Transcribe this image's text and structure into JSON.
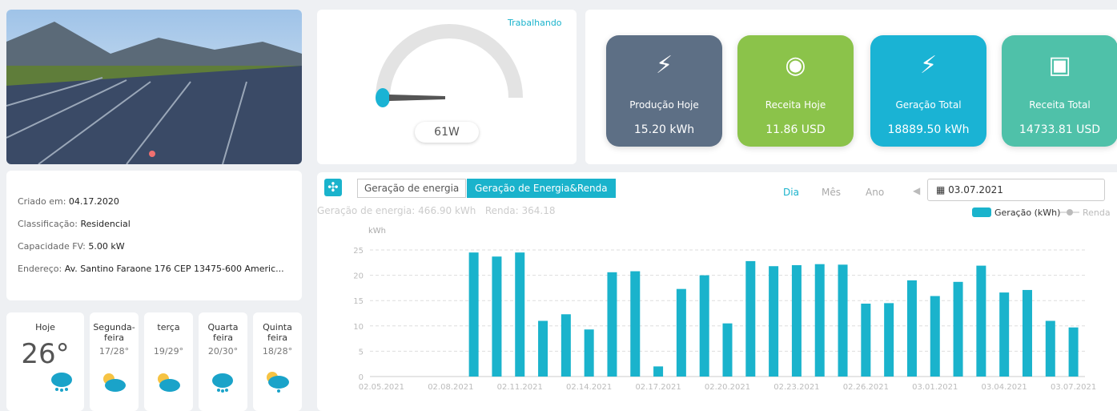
{
  "status": "Trabalhando",
  "gauge": {
    "value": "61W"
  },
  "kpis": [
    {
      "label": "Produção Hoje",
      "value": "15.20 kWh"
    },
    {
      "label": "Receita Hoje",
      "value": "11.86 USD"
    },
    {
      "label": "Geração Total",
      "value": "18889.50 kWh"
    },
    {
      "label": "Receita Total",
      "value": "14733.81 USD"
    }
  ],
  "info": [
    {
      "label": "Criado em:",
      "value": "04.17.2020"
    },
    {
      "label": "Classificação:",
      "value": "Residencial"
    },
    {
      "label": "Capacidade FV:",
      "value": "5.00 kW"
    },
    {
      "label": "Endereço:",
      "value": "Av. Santino Faraone 176 CEP 13475-600 Americ..."
    }
  ],
  "weather": [
    {
      "day": "Hoje",
      "temp": "26°"
    },
    {
      "day": "Segunda-feira",
      "temp": "17/28°"
    },
    {
      "day": "terça",
      "temp": "19/29°"
    },
    {
      "day": "Quarta feira",
      "temp": "20/30°"
    },
    {
      "day": "Quinta feira",
      "temp": "18/28°"
    }
  ],
  "chart_panel": {
    "tabs": [
      "Geração de energia",
      "Geração de Energia&Renda"
    ],
    "periods": [
      "Dia",
      "Mês",
      "Ano"
    ],
    "date": "03.07.2021",
    "summary": [
      {
        "label": "Geração de energia:",
        "value": "466.90 kWh"
      },
      {
        "label": "Renda:",
        "value": "364.18"
      }
    ]
  },
  "chart_data": {
    "type": "bar",
    "y_label": "kWh",
    "categories": [
      "02.05.2021",
      null,
      null,
      "02.08.2021",
      null,
      null,
      "02.11.2021",
      null,
      null,
      "02.14.2021",
      null,
      null,
      "02.17.2021",
      null,
      null,
      "02.20.2021",
      null,
      null,
      "02.23.2021",
      null,
      null,
      "02.26.2021",
      null,
      null,
      "03.01.2021",
      null,
      null,
      "03.04.2021",
      null,
      null,
      "03.07.2021"
    ],
    "series": [
      {
        "name": "Geração (kWh)",
        "color": "#1ab3cc",
        "values": [
          null,
          null,
          null,
          null,
          24.5,
          23.7,
          24.5,
          11,
          12.3,
          9.3,
          20.6,
          20.8,
          2,
          17.3,
          20,
          10.5,
          22.8,
          21.8,
          22,
          22.2,
          22.1,
          14.4,
          14.5,
          19,
          15.9,
          18.7,
          21.9,
          16.6,
          17.1,
          11,
          9.7
        ]
      },
      {
        "name": "Renda",
        "color": "#bbbbbb",
        "values": [
          null,
          null,
          null,
          null,
          null,
          null,
          null,
          null,
          null,
          null,
          null,
          null,
          null,
          null,
          null,
          null,
          null,
          null,
          null,
          null,
          null,
          null,
          null,
          null,
          null,
          null,
          null,
          null,
          null,
          null,
          null
        ]
      }
    ],
    "ylim": [
      0,
      25
    ],
    "yticks": [
      0,
      5,
      10,
      15,
      20,
      25
    ],
    "grid": true
  }
}
